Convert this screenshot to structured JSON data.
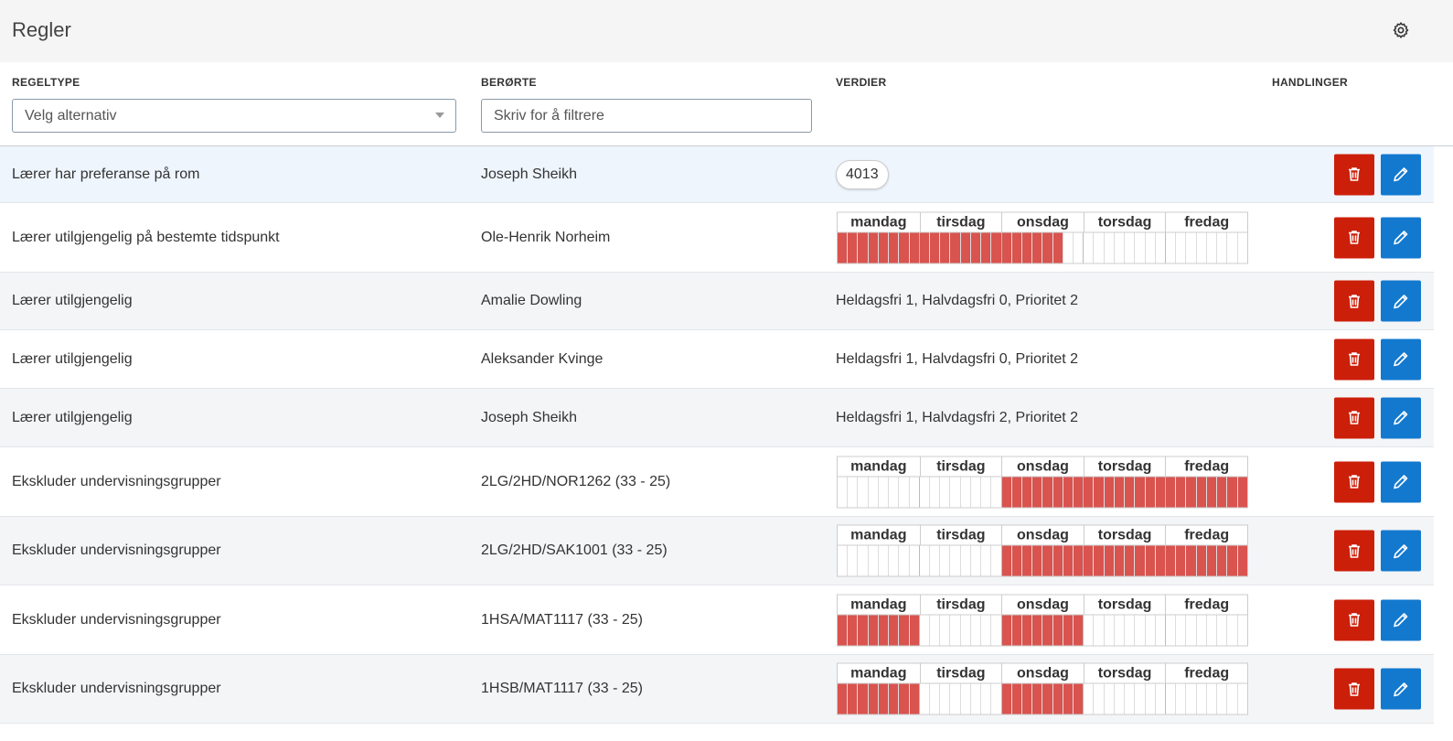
{
  "header": {
    "title": "Regler"
  },
  "columns": [
    "REGELTYPE",
    "BERØRTE",
    "VERDIER",
    "HANDLINGER"
  ],
  "filters": {
    "rule_type_placeholder": "Velg alternativ",
    "affected_placeholder": "Skriv for å filtrere"
  },
  "days": [
    "mandag",
    "tirsdag",
    "onsdag",
    "torsdag",
    "fredag"
  ],
  "rows": [
    {
      "rule_type": "Lærer har preferanse på rom",
      "affected": "Joseph Sheikh",
      "chip": "4013"
    },
    {
      "rule_type": "Lærer utilgjengelig på bestemte tidspunkt",
      "affected": "Ole-Henrik Norheim",
      "slots": [
        1,
        1,
        1,
        1,
        1,
        1,
        1,
        1,
        1,
        1,
        1,
        1,
        1,
        1,
        1,
        1,
        1,
        1,
        1,
        1,
        1,
        1,
        0,
        0,
        0,
        0,
        0,
        0,
        0,
        0,
        0,
        0,
        0,
        0,
        0,
        0,
        0,
        0,
        0,
        0
      ]
    },
    {
      "rule_type": "Lærer utilgjengelig",
      "affected": "Amalie Dowling",
      "text": "Heldagsfri 1, Halvdagsfri 0, Prioritet 2"
    },
    {
      "rule_type": "Lærer utilgjengelig",
      "affected": "Aleksander Kvinge",
      "text": "Heldagsfri 1, Halvdagsfri 0, Prioritet 2"
    },
    {
      "rule_type": "Lærer utilgjengelig",
      "affected": "Joseph Sheikh",
      "text": "Heldagsfri 1, Halvdagsfri 2, Prioritet 2"
    },
    {
      "rule_type": "Ekskluder undervisningsgrupper",
      "affected": "2LG/2HD/NOR1262 (33 - 25)",
      "slots": [
        0,
        0,
        0,
        0,
        0,
        0,
        0,
        0,
        0,
        0,
        0,
        0,
        0,
        0,
        0,
        0,
        1,
        1,
        1,
        1,
        1,
        1,
        1,
        1,
        1,
        1,
        1,
        1,
        1,
        1,
        1,
        1,
        1,
        1,
        1,
        1,
        1,
        1,
        1,
        1
      ]
    },
    {
      "rule_type": "Ekskluder undervisningsgrupper",
      "affected": "2LG/2HD/SAK1001 (33 - 25)",
      "slots": [
        0,
        0,
        0,
        0,
        0,
        0,
        0,
        0,
        0,
        0,
        0,
        0,
        0,
        0,
        0,
        0,
        1,
        1,
        1,
        1,
        1,
        1,
        1,
        1,
        1,
        1,
        1,
        1,
        1,
        1,
        1,
        1,
        1,
        1,
        1,
        1,
        1,
        1,
        1,
        1
      ]
    },
    {
      "rule_type": "Ekskluder undervisningsgrupper",
      "affected": "1HSA/MAT1117 (33 - 25)",
      "slots": [
        1,
        1,
        1,
        1,
        1,
        1,
        1,
        1,
        0,
        0,
        0,
        0,
        0,
        0,
        0,
        0,
        1,
        1,
        1,
        1,
        1,
        1,
        1,
        1,
        0,
        0,
        0,
        0,
        0,
        0,
        0,
        0,
        0,
        0,
        0,
        0,
        0,
        0,
        0,
        0
      ]
    },
    {
      "rule_type": "Ekskluder undervisningsgrupper",
      "affected": "1HSB/MAT1117 (33 - 25)",
      "slots": [
        1,
        1,
        1,
        1,
        1,
        1,
        1,
        1,
        0,
        0,
        0,
        0,
        0,
        0,
        0,
        0,
        1,
        1,
        1,
        1,
        1,
        1,
        1,
        1,
        0,
        0,
        0,
        0,
        0,
        0,
        0,
        0,
        0,
        0,
        0,
        0,
        0,
        0,
        0,
        0
      ]
    }
  ]
}
